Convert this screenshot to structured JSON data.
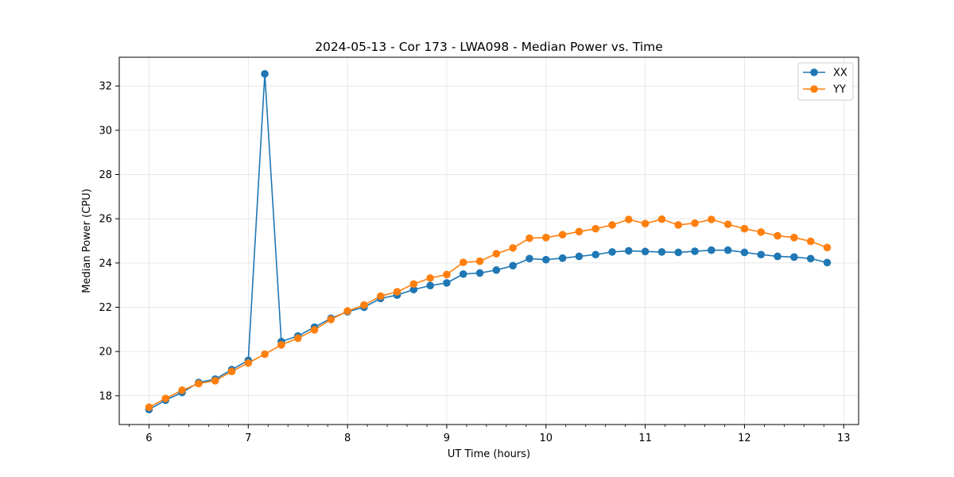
{
  "chart_data": {
    "type": "line",
    "title": "2024-05-13 - Cor 173 - LWA098 - Median Power vs. Time",
    "xlabel": "UT Time (hours)",
    "ylabel": "Median Power (CPU)",
    "xlim": [
      5.7,
      13.15
    ],
    "ylim": [
      16.7,
      33.3
    ],
    "xticks": [
      6,
      7,
      8,
      9,
      10,
      11,
      12,
      13
    ],
    "yticks": [
      18,
      20,
      22,
      24,
      26,
      28,
      30,
      32
    ],
    "grid": true,
    "legend_position": "top-right",
    "x": [
      6.0,
      6.1667,
      6.3333,
      6.5,
      6.6667,
      6.8333,
      7.0,
      7.1667,
      7.3333,
      7.5,
      7.6667,
      7.8333,
      8.0,
      8.1667,
      8.3333,
      8.5,
      8.6667,
      8.8333,
      9.0,
      9.1667,
      9.3333,
      9.5,
      9.6667,
      9.8333,
      10.0,
      10.1667,
      10.3333,
      10.5,
      10.6667,
      10.8333,
      11.0,
      11.1667,
      11.3333,
      11.5,
      11.6667,
      11.8333,
      12.0,
      12.1667,
      12.3333,
      12.5,
      12.6667,
      12.8333
    ],
    "series": [
      {
        "name": "XX",
        "color": "#1f77b4",
        "values": [
          17.38,
          17.8,
          18.15,
          18.6,
          18.75,
          19.18,
          19.6,
          32.55,
          20.45,
          20.7,
          21.1,
          21.5,
          21.8,
          22.0,
          22.4,
          22.55,
          22.8,
          22.98,
          23.1,
          23.5,
          23.55,
          23.68,
          23.88,
          24.2,
          24.15,
          24.22,
          24.3,
          24.38,
          24.5,
          24.55,
          24.52,
          24.5,
          24.48,
          24.53,
          24.58,
          24.58,
          24.48,
          24.38,
          24.3,
          24.27,
          24.2,
          24.02
        ]
      },
      {
        "name": "YY",
        "color": "#ff7f0e",
        "values": [
          17.48,
          17.88,
          18.25,
          18.55,
          18.68,
          19.1,
          19.48,
          19.88,
          20.3,
          20.6,
          20.98,
          21.45,
          21.83,
          22.1,
          22.5,
          22.7,
          23.05,
          23.32,
          23.48,
          24.03,
          24.08,
          24.42,
          24.68,
          25.12,
          25.15,
          25.28,
          25.42,
          25.55,
          25.72,
          25.97,
          25.78,
          25.98,
          25.72,
          25.8,
          25.97,
          25.75,
          25.55,
          25.4,
          25.23,
          25.15,
          24.98,
          24.7
        ]
      }
    ]
  }
}
